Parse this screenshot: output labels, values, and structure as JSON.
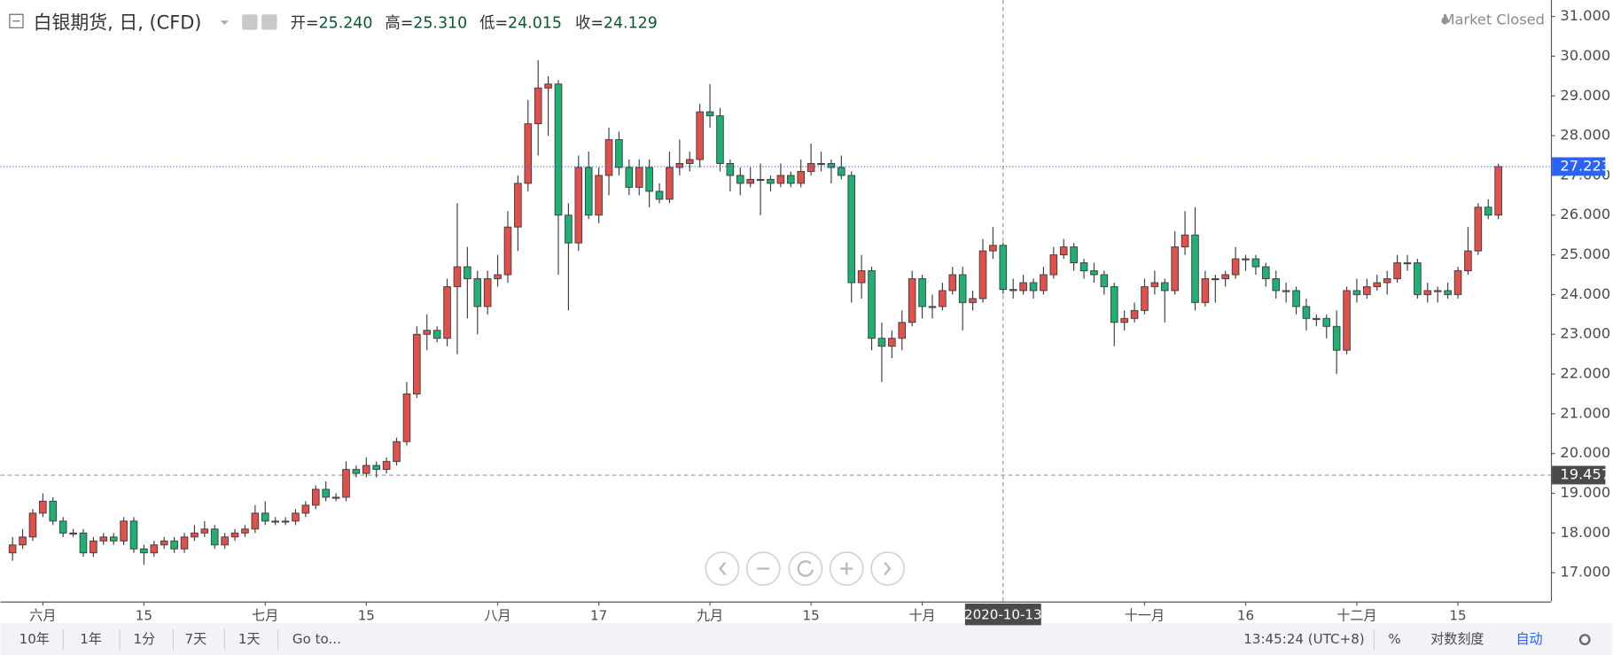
{
  "chart_data": {
    "type": "candlestick",
    "title": "白银期货, 日, (CFD)",
    "ohlc_legend": [
      {
        "label": "开=",
        "value": "25.240"
      },
      {
        "label": "高=",
        "value": "25.310"
      },
      {
        "label": "低=",
        "value": "24.015"
      },
      {
        "label": "收=",
        "value": "24.129"
      }
    ],
    "status": "Market Closed",
    "up_color": "#e2504c",
    "down_color": "#1fb174",
    "candles": [
      [
        17.5,
        17.9,
        17.3,
        17.7
      ],
      [
        17.7,
        18.1,
        17.6,
        17.9
      ],
      [
        17.9,
        18.6,
        17.8,
        18.5
      ],
      [
        18.5,
        19.0,
        18.4,
        18.8
      ],
      [
        18.8,
        18.9,
        18.2,
        18.3
      ],
      [
        18.3,
        18.4,
        17.9,
        18.0
      ],
      [
        18.0,
        18.1,
        17.9,
        18.0
      ],
      [
        18.0,
        18.1,
        17.4,
        17.5
      ],
      [
        17.5,
        17.9,
        17.4,
        17.8
      ],
      [
        17.8,
        18.0,
        17.7,
        17.9
      ],
      [
        17.9,
        18.0,
        17.7,
        17.8
      ],
      [
        17.8,
        18.4,
        17.7,
        18.3
      ],
      [
        18.3,
        18.4,
        17.5,
        17.6
      ],
      [
        17.6,
        17.7,
        17.2,
        17.5
      ],
      [
        17.5,
        17.8,
        17.4,
        17.7
      ],
      [
        17.7,
        17.9,
        17.6,
        17.8
      ],
      [
        17.8,
        17.9,
        17.5,
        17.6
      ],
      [
        17.6,
        18.0,
        17.5,
        17.9
      ],
      [
        17.9,
        18.2,
        17.8,
        18.0
      ],
      [
        18.0,
        18.3,
        17.9,
        18.1
      ],
      [
        18.1,
        18.2,
        17.6,
        17.7
      ],
      [
        17.7,
        18.0,
        17.6,
        17.9
      ],
      [
        17.9,
        18.1,
        17.8,
        18.0
      ],
      [
        18.0,
        18.2,
        17.9,
        18.1
      ],
      [
        18.1,
        18.7,
        18.0,
        18.5
      ],
      [
        18.5,
        18.8,
        18.2,
        18.3
      ],
      [
        18.3,
        18.4,
        18.2,
        18.3
      ],
      [
        18.3,
        18.4,
        18.2,
        18.3
      ],
      [
        18.3,
        18.6,
        18.2,
        18.5
      ],
      [
        18.5,
        18.8,
        18.4,
        18.7
      ],
      [
        18.7,
        19.2,
        18.6,
        19.1
      ],
      [
        19.1,
        19.3,
        18.8,
        18.9
      ],
      [
        18.9,
        19.0,
        18.8,
        18.9
      ],
      [
        18.9,
        19.8,
        18.8,
        19.6
      ],
      [
        19.6,
        19.7,
        19.4,
        19.5
      ],
      [
        19.5,
        19.9,
        19.4,
        19.7
      ],
      [
        19.7,
        19.8,
        19.4,
        19.6
      ],
      [
        19.6,
        19.9,
        19.5,
        19.8
      ],
      [
        19.8,
        20.4,
        19.7,
        20.3
      ],
      [
        20.3,
        21.8,
        20.2,
        21.5
      ],
      [
        21.5,
        23.2,
        21.4,
        23.0
      ],
      [
        23.0,
        23.5,
        22.6,
        23.1
      ],
      [
        23.1,
        23.2,
        22.8,
        22.9
      ],
      [
        22.9,
        24.4,
        22.7,
        24.2
      ],
      [
        24.2,
        26.3,
        22.5,
        24.7
      ],
      [
        24.7,
        25.2,
        23.4,
        24.4
      ],
      [
        24.4,
        24.6,
        23.0,
        23.7
      ],
      [
        23.7,
        24.6,
        23.5,
        24.4
      ],
      [
        24.4,
        25.0,
        24.2,
        24.5
      ],
      [
        24.5,
        26.1,
        24.3,
        25.7
      ],
      [
        25.7,
        27.0,
        25.1,
        26.8
      ],
      [
        26.8,
        28.9,
        26.6,
        28.3
      ],
      [
        28.3,
        29.9,
        27.5,
        29.2
      ],
      [
        29.2,
        29.5,
        28.0,
        29.3
      ],
      [
        29.3,
        29.4,
        24.5,
        26.0
      ],
      [
        26.0,
        26.3,
        23.6,
        25.3
      ],
      [
        25.3,
        27.5,
        25.1,
        27.2
      ],
      [
        27.2,
        27.6,
        25.9,
        26.0
      ],
      [
        26.0,
        27.2,
        25.8,
        27.0
      ],
      [
        27.0,
        28.2,
        26.5,
        27.9
      ],
      [
        27.9,
        28.1,
        27.0,
        27.2
      ],
      [
        27.2,
        27.4,
        26.5,
        26.7
      ],
      [
        26.7,
        27.4,
        26.5,
        27.2
      ],
      [
        27.2,
        27.4,
        26.2,
        26.6
      ],
      [
        26.6,
        26.8,
        26.3,
        26.4
      ],
      [
        26.4,
        27.6,
        26.3,
        27.2
      ],
      [
        27.2,
        27.9,
        27.0,
        27.3
      ],
      [
        27.3,
        27.6,
        27.1,
        27.4
      ],
      [
        27.4,
        28.8,
        27.2,
        28.6
      ],
      [
        28.6,
        29.3,
        28.2,
        28.5
      ],
      [
        28.5,
        28.7,
        27.1,
        27.3
      ],
      [
        27.3,
        27.4,
        26.6,
        27.0
      ],
      [
        27.0,
        27.2,
        26.5,
        26.8
      ],
      [
        26.8,
        27.2,
        26.7,
        26.9
      ],
      [
        26.9,
        27.3,
        26.0,
        26.9
      ],
      [
        26.9,
        27.0,
        26.6,
        26.8
      ],
      [
        26.8,
        27.3,
        26.7,
        27.0
      ],
      [
        27.0,
        27.1,
        26.7,
        26.8
      ],
      [
        26.8,
        27.4,
        26.7,
        27.1
      ],
      [
        27.1,
        27.8,
        27.0,
        27.3
      ],
      [
        27.3,
        27.6,
        27.1,
        27.3
      ],
      [
        27.3,
        27.4,
        26.8,
        27.2
      ],
      [
        27.2,
        27.5,
        26.9,
        27.0
      ],
      [
        27.0,
        27.1,
        23.8,
        24.3
      ],
      [
        24.3,
        25.0,
        23.9,
        24.6
      ],
      [
        24.6,
        24.7,
        22.6,
        22.9
      ],
      [
        22.9,
        23.3,
        21.8,
        22.7
      ],
      [
        22.7,
        23.1,
        22.4,
        22.9
      ],
      [
        22.9,
        23.6,
        22.6,
        23.3
      ],
      [
        23.3,
        24.6,
        23.2,
        24.4
      ],
      [
        24.4,
        24.5,
        23.4,
        23.7
      ],
      [
        23.7,
        24.0,
        23.4,
        23.7
      ],
      [
        23.7,
        24.3,
        23.6,
        24.1
      ],
      [
        24.1,
        24.7,
        24.0,
        24.5
      ],
      [
        24.5,
        24.7,
        23.1,
        23.8
      ],
      [
        23.8,
        24.1,
        23.6,
        23.9
      ],
      [
        23.9,
        25.4,
        23.8,
        25.1
      ],
      [
        25.1,
        25.7,
        24.9,
        25.24
      ],
      [
        25.24,
        25.31,
        24.015,
        24.129
      ],
      [
        24.129,
        24.4,
        23.9,
        24.1
      ],
      [
        24.1,
        24.5,
        24.0,
        24.3
      ],
      [
        24.3,
        24.4,
        23.9,
        24.1
      ],
      [
        24.1,
        24.7,
        24.0,
        24.5
      ],
      [
        24.5,
        25.2,
        24.4,
        25.0
      ],
      [
        25.0,
        25.4,
        24.9,
        25.2
      ],
      [
        25.2,
        25.3,
        24.6,
        24.8
      ],
      [
        24.8,
        24.9,
        24.4,
        24.6
      ],
      [
        24.6,
        24.8,
        24.3,
        24.5
      ],
      [
        24.5,
        24.6,
        24.0,
        24.2
      ],
      [
        24.2,
        24.3,
        22.7,
        23.3
      ],
      [
        23.3,
        23.6,
        23.1,
        23.4
      ],
      [
        23.4,
        23.8,
        23.3,
        23.6
      ],
      [
        23.6,
        24.4,
        23.5,
        24.2
      ],
      [
        24.2,
        24.6,
        24.0,
        24.3
      ],
      [
        24.3,
        24.4,
        23.3,
        24.1
      ],
      [
        24.1,
        25.6,
        24.0,
        25.2
      ],
      [
        25.2,
        26.1,
        25.0,
        25.5
      ],
      [
        25.5,
        26.2,
        23.6,
        23.8
      ],
      [
        23.8,
        24.6,
        23.7,
        24.4
      ],
      [
        24.4,
        24.5,
        23.8,
        24.4
      ],
      [
        24.4,
        24.6,
        24.2,
        24.5
      ],
      [
        24.5,
        25.2,
        24.4,
        24.9
      ],
      [
        24.9,
        25.0,
        24.6,
        24.9
      ],
      [
        24.9,
        25.0,
        24.5,
        24.7
      ],
      [
        24.7,
        24.8,
        24.2,
        24.4
      ],
      [
        24.4,
        24.6,
        23.9,
        24.1
      ],
      [
        24.1,
        24.3,
        23.8,
        24.1
      ],
      [
        24.1,
        24.2,
        23.5,
        23.7
      ],
      [
        23.7,
        23.9,
        23.1,
        23.4
      ],
      [
        23.4,
        23.5,
        23.2,
        23.4
      ],
      [
        23.4,
        23.5,
        22.9,
        23.2
      ],
      [
        23.2,
        23.6,
        22.0,
        22.6
      ],
      [
        22.6,
        24.2,
        22.5,
        24.1
      ],
      [
        24.1,
        24.4,
        23.8,
        24.0
      ],
      [
        24.0,
        24.4,
        23.9,
        24.2
      ],
      [
        24.2,
        24.5,
        24.1,
        24.3
      ],
      [
        24.3,
        24.6,
        24.0,
        24.4
      ],
      [
        24.4,
        25.0,
        24.3,
        24.8
      ],
      [
        24.8,
        25.0,
        24.6,
        24.8
      ],
      [
        24.8,
        24.9,
        23.9,
        24.0
      ],
      [
        24.0,
        24.3,
        23.8,
        24.1
      ],
      [
        24.1,
        24.2,
        23.8,
        24.1
      ],
      [
        24.1,
        24.3,
        23.9,
        24.0
      ],
      [
        24.0,
        24.7,
        23.9,
        24.6
      ],
      [
        24.6,
        25.7,
        24.5,
        25.1
      ],
      [
        25.1,
        26.3,
        25.0,
        26.2
      ],
      [
        26.2,
        26.4,
        25.9,
        26.0
      ],
      [
        26.0,
        27.3,
        25.9,
        27.223
      ]
    ],
    "xlim": [
      -1.2,
      152.2
    ],
    "xticks": [
      {
        "value": 3,
        "label": "六月"
      },
      {
        "value": 13,
        "label": "15"
      },
      {
        "value": 25,
        "label": "七月"
      },
      {
        "value": 35,
        "label": "15"
      },
      {
        "value": 48,
        "label": "八月"
      },
      {
        "value": 58,
        "label": "17"
      },
      {
        "value": 69,
        "label": "九月"
      },
      {
        "value": 79,
        "label": "15"
      },
      {
        "value": 90,
        "label": "十月"
      },
      {
        "value": 112,
        "label": "十一月"
      },
      {
        "value": 122,
        "label": "16"
      },
      {
        "value": 133,
        "label": "十二月"
      },
      {
        "value": 143,
        "label": "15"
      }
    ],
    "ylim": [
      16.275,
      31.415
    ],
    "yticks": [
      {
        "value": 17,
        "label": "17.000"
      },
      {
        "value": 18,
        "label": "18.000"
      },
      {
        "value": 19,
        "label": "19.000"
      },
      {
        "value": 20,
        "label": "20.000"
      },
      {
        "value": 21,
        "label": "21.000"
      },
      {
        "value": 22,
        "label": "22.000"
      },
      {
        "value": 23,
        "label": "23.000"
      },
      {
        "value": 24,
        "label": "24.000"
      },
      {
        "value": 25,
        "label": "25.000"
      },
      {
        "value": 26,
        "label": "26.000"
      },
      {
        "value": 27,
        "label": "27.000"
      },
      {
        "value": 28,
        "label": "28.000"
      },
      {
        "value": 29,
        "label": "29.000"
      },
      {
        "value": 30,
        "label": "30.000"
      },
      {
        "value": 31,
        "label": "31.000"
      }
    ],
    "grid": false,
    "last_price": 27.223,
    "last_price_color": "#2962ff",
    "crosshair": {
      "x": 98,
      "x_label": "2020-10-13",
      "y": 19.457
    }
  },
  "toolbar": {
    "ranges": [
      "10年",
      "1年",
      "1分",
      "7天",
      "1天"
    ],
    "goto": "Go to...",
    "time": "13:45:24 (UTC+8)",
    "percent": "%",
    "log": "对数刻度",
    "auto": "自动"
  }
}
